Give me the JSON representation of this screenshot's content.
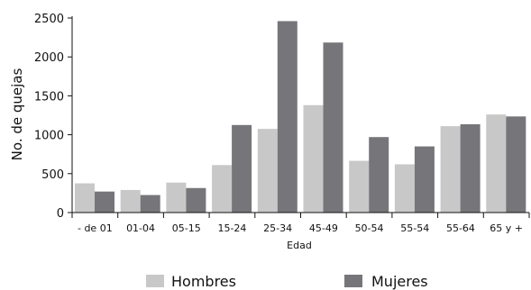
{
  "chart_data": {
    "type": "bar",
    "title": "",
    "xlabel": "Edad",
    "ylabel": "No. de quejas",
    "ylim": [
      0,
      2500
    ],
    "yticks": [
      0,
      500,
      1000,
      1500,
      2000,
      2500
    ],
    "grid": false,
    "legend_position": "bottom",
    "categories": [
      "- de 01",
      "01-04",
      "05-15",
      "15-24",
      "25-34",
      "45-49",
      "50-54",
      "55-54",
      "55-64",
      "65 y +"
    ],
    "series": [
      {
        "name": "Hombres",
        "color": "#c8c8c8",
        "values": [
          375,
          290,
          385,
          610,
          1075,
          1380,
          665,
          620,
          1110,
          1260
        ]
      },
      {
        "name": "Mujeres",
        "color": "#76767a",
        "values": [
          270,
          225,
          315,
          1125,
          2460,
          2185,
          970,
          850,
          1135,
          1235
        ]
      }
    ]
  }
}
